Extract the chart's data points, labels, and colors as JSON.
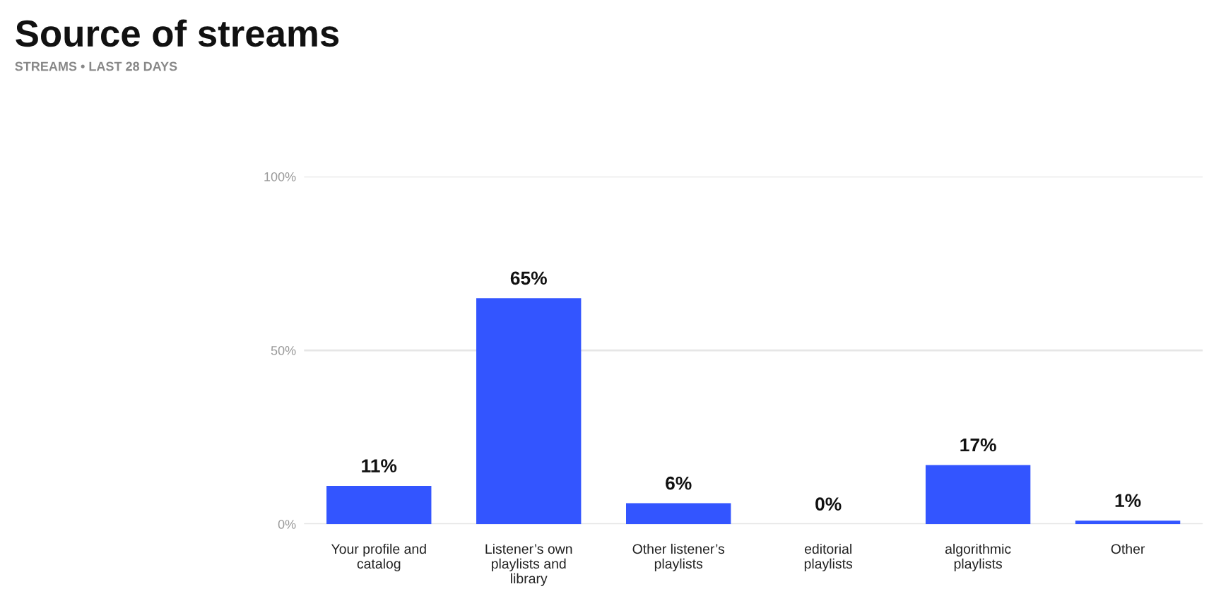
{
  "chart_data": {
    "type": "bar",
    "title": "Source of streams",
    "subtitle": "STREAMS • LAST 28 DAYS",
    "categories": [
      "Your profile and catalog",
      "Listener’s own playlists and library",
      "Other listener’s playlists",
      "editorial playlists",
      "algorithmic playlists",
      "Other"
    ],
    "values": [
      11,
      65,
      6,
      0,
      17,
      1
    ],
    "value_labels": [
      "11%",
      "65%",
      "6%",
      "0%",
      "17%",
      "1%"
    ],
    "color": "#3355ff",
    "ylim": [
      0,
      100
    ],
    "yticks": [
      {
        "value": 0,
        "label": "0%"
      },
      {
        "value": 50,
        "label": "50%"
      },
      {
        "value": 100,
        "label": "100%"
      }
    ],
    "grid": "y"
  }
}
